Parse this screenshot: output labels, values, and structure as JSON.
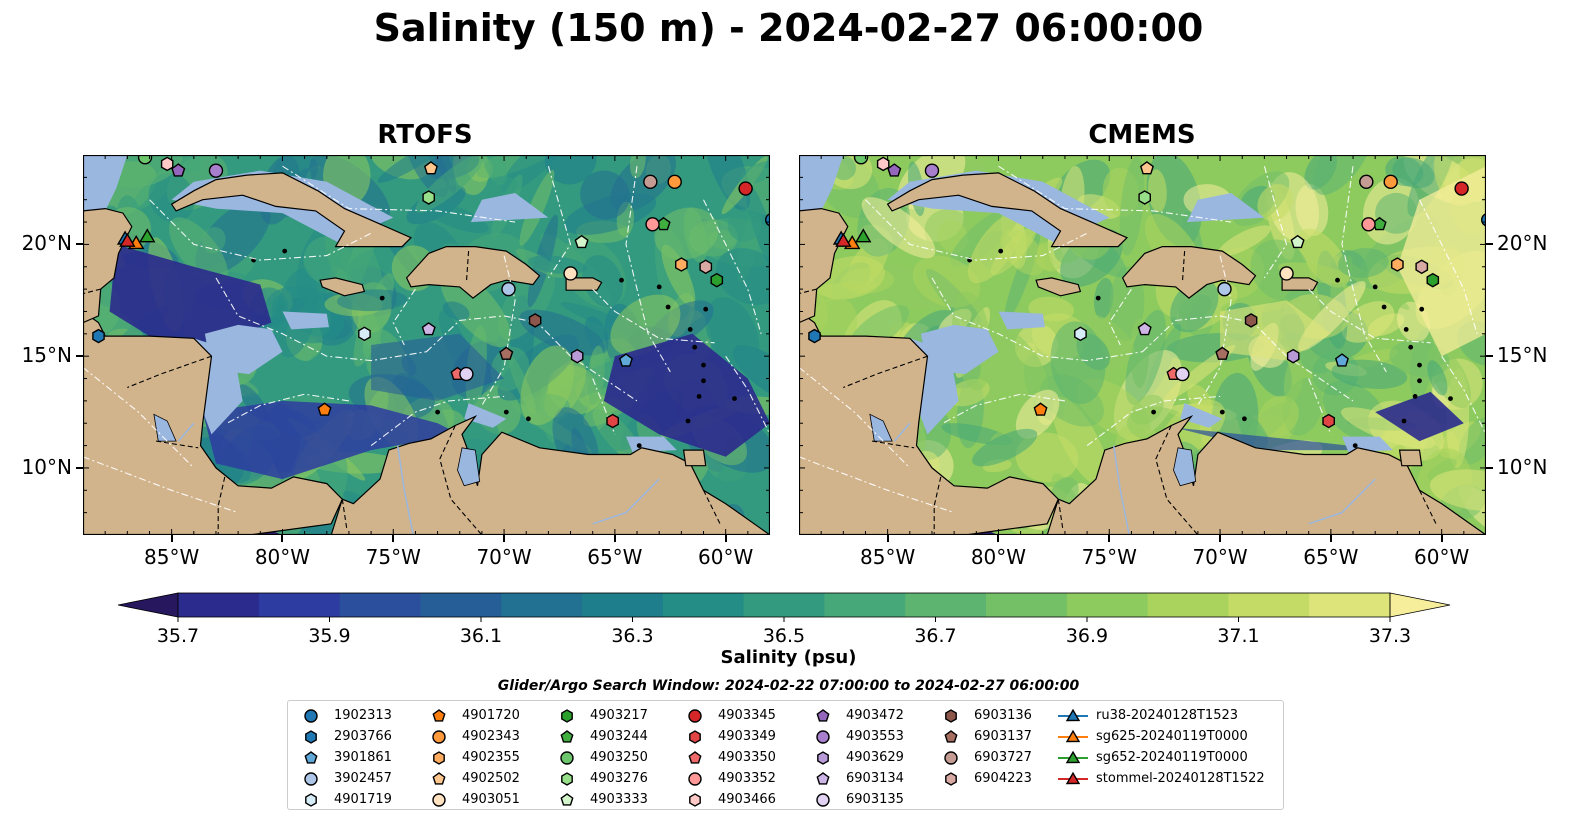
{
  "title": "Salinity (150 m) - 2024-02-27 06:00:00",
  "panels": [
    {
      "title": "RTOFS",
      "variant": "rtofs"
    },
    {
      "title": "CMEMS",
      "variant": "cmems"
    }
  ],
  "axes": {
    "lon_ticks": [
      "85°W",
      "80°W",
      "75°W",
      "70°W",
      "65°W",
      "60°W"
    ],
    "lat_ticks": [
      "20°N",
      "15°N",
      "10°N"
    ]
  },
  "colorbar": {
    "label": "Salinity (psu)",
    "ticks": [
      "35.7",
      "35.9",
      "36.1",
      "36.3",
      "36.5",
      "36.7",
      "36.9",
      "37.1",
      "37.3"
    ],
    "range": [
      35.7,
      37.3
    ],
    "colors": [
      "#27175f",
      "#2b2a8d",
      "#2d3ca0",
      "#2b4f9d",
      "#265f98",
      "#227092",
      "#1f7e8c",
      "#248d86",
      "#339a7f",
      "#46a778",
      "#5db470",
      "#73c067",
      "#8ecb5f",
      "#a9d35d",
      "#c4dc66",
      "#dde57a",
      "#f6ee9a"
    ]
  },
  "search_window": "Glider/Argo Search Window: 2024-02-22 07:00:00 to 2024-02-27 06:00:00",
  "legend": {
    "columns": [
      [
        {
          "label": "1902313",
          "marker": "circle",
          "color": "#1f77b4"
        },
        {
          "label": "2903766",
          "marker": "hexagon",
          "color": "#1f77b4"
        },
        {
          "label": "3901861",
          "marker": "pentagon",
          "color": "#5fa8d8"
        },
        {
          "label": "3902457",
          "marker": "circle",
          "color": "#aec7e8"
        },
        {
          "label": "4901719",
          "marker": "hexagon",
          "color": "#d6ecf7"
        }
      ],
      [
        {
          "label": "4901720",
          "marker": "pentagon",
          "color": "#ff7f0e"
        },
        {
          "label": "4902343",
          "marker": "circle",
          "color": "#ff9a3c"
        },
        {
          "label": "4902355",
          "marker": "hexagon",
          "color": "#ffac60"
        },
        {
          "label": "4902502",
          "marker": "pentagon",
          "color": "#ffc68e"
        },
        {
          "label": "4903051",
          "marker": "circle",
          "color": "#ffe2c0"
        }
      ],
      [
        {
          "label": "4903217",
          "marker": "hexagon",
          "color": "#2ca02c"
        },
        {
          "label": "4903244",
          "marker": "pentagon",
          "color": "#3fae3f"
        },
        {
          "label": "4903250",
          "marker": "circle",
          "color": "#6cc66c"
        },
        {
          "label": "4903276",
          "marker": "hexagon",
          "color": "#98df8a"
        },
        {
          "label": "4903333",
          "marker": "pentagon",
          "color": "#d4f5cc"
        }
      ],
      [
        {
          "label": "4903345",
          "marker": "circle",
          "color": "#d62728"
        },
        {
          "label": "4903349",
          "marker": "hexagon",
          "color": "#e04444"
        },
        {
          "label": "4903350",
          "marker": "pentagon",
          "color": "#ee6a6a"
        },
        {
          "label": "4903352",
          "marker": "circle",
          "color": "#ff9896"
        },
        {
          "label": "4903466",
          "marker": "hexagon",
          "color": "#ffc9c8"
        }
      ],
      [
        {
          "label": "4903472",
          "marker": "pentagon",
          "color": "#9467bd"
        },
        {
          "label": "4903553",
          "marker": "circle",
          "color": "#a77fcc"
        },
        {
          "label": "4903629",
          "marker": "hexagon",
          "color": "#b99ad8"
        },
        {
          "label": "6903134",
          "marker": "pentagon",
          "color": "#cdb5e6"
        },
        {
          "label": "6903135",
          "marker": "circle",
          "color": "#e2d2f2"
        }
      ],
      [
        {
          "label": "6903136",
          "marker": "hexagon",
          "color": "#8c564b"
        },
        {
          "label": "6903137",
          "marker": "pentagon",
          "color": "#a66d61"
        },
        {
          "label": "6903727",
          "marker": "circle",
          "color": "#c49c94"
        },
        {
          "label": "6904223",
          "marker": "hexagon",
          "color": "#d8aaa3"
        }
      ],
      [
        {
          "label": "ru38-20240128T1523",
          "marker": "triangle-line",
          "color": "#1f77b4"
        },
        {
          "label": "sg625-20240119T0000",
          "marker": "triangle-line",
          "color": "#ff7f0e"
        },
        {
          "label": "sg652-20240119T0000",
          "marker": "triangle-line",
          "color": "#2ca02c"
        },
        {
          "label": "stommel-20240128T1522",
          "marker": "triangle-line",
          "color": "#d62728"
        }
      ]
    ]
  },
  "map_colors": {
    "land": "#d2b48c",
    "shallow": "#9ab7e0",
    "deep_pacific": "#2a1a6a"
  }
}
